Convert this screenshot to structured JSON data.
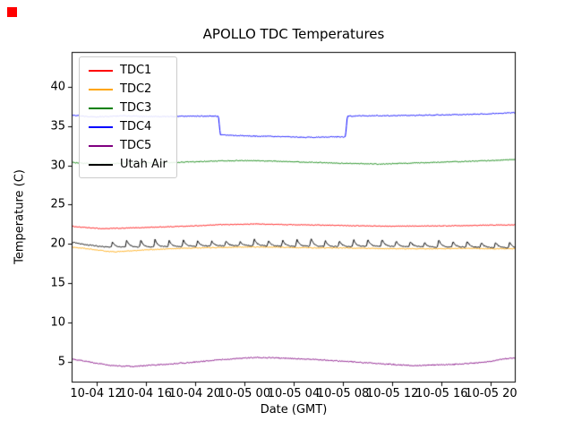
{
  "marker": {
    "color": "#ff0000"
  },
  "chart_data": {
    "type": "line",
    "title": "APOLLO TDC Temperatures",
    "xlabel": "Date (GMT)",
    "ylabel": "Temperature (C)",
    "grid": false,
    "legend_position": "upper left",
    "xlim": [
      0,
      36
    ],
    "ylim": [
      2.4,
      44.4
    ],
    "x_unit": "hours from axis start",
    "xticks": {
      "positions": [
        2,
        6,
        10,
        14,
        18,
        22,
        26,
        30,
        34
      ],
      "labels": [
        "10-04 12",
        "10-04 16",
        "10-04 20",
        "10-05 00",
        "10-05 04",
        "10-05 08",
        "10-05 12",
        "10-05 16",
        "10-05 20"
      ]
    },
    "yticks": {
      "positions": [
        5,
        10,
        15,
        20,
        25,
        30,
        35,
        40
      ],
      "labels": [
        "5",
        "10",
        "15",
        "20",
        "25",
        "30",
        "35",
        "40"
      ]
    },
    "series": [
      {
        "name": "TDC1",
        "color": "#ff0000",
        "noise": 0.05,
        "x": [
          0,
          1,
          2.5,
          4,
          6,
          8,
          10,
          12,
          14,
          15,
          16,
          18,
          20,
          22,
          24,
          26,
          28,
          30,
          32,
          34,
          36
        ],
        "y": [
          22.25,
          22.1,
          21.95,
          22.0,
          22.1,
          22.2,
          22.3,
          22.45,
          22.5,
          22.55,
          22.5,
          22.45,
          22.4,
          22.35,
          22.3,
          22.25,
          22.3,
          22.3,
          22.35,
          22.4,
          22.45
        ]
      },
      {
        "name": "TDC2",
        "color": "#ffa500",
        "noise": 0.05,
        "x": [
          0,
          1,
          2,
          3,
          3.6,
          4.5,
          6,
          8,
          10,
          12,
          14,
          16,
          18,
          20,
          22,
          24,
          26,
          28,
          30,
          32,
          34,
          36
        ],
        "y": [
          19.6,
          19.45,
          19.25,
          19.05,
          19.0,
          19.1,
          19.25,
          19.4,
          19.5,
          19.55,
          19.6,
          19.6,
          19.55,
          19.5,
          19.5,
          19.45,
          19.4,
          19.4,
          19.4,
          19.45,
          19.4,
          19.4
        ]
      },
      {
        "name": "TDC3",
        "color": "#008000",
        "noise": 0.06,
        "x": [
          0,
          1,
          2,
          4,
          6,
          8,
          10,
          12,
          14,
          16,
          18,
          20,
          22,
          24,
          25,
          26,
          28,
          30,
          32,
          34,
          36
        ],
        "y": [
          30.35,
          30.25,
          30.2,
          30.25,
          30.3,
          30.35,
          30.45,
          30.55,
          30.6,
          30.55,
          30.45,
          30.35,
          30.25,
          30.2,
          30.15,
          30.2,
          30.3,
          30.4,
          30.5,
          30.6,
          30.75
        ]
      },
      {
        "name": "TDC4",
        "color": "#0000ff",
        "noise": 0.06,
        "x": [
          0,
          1,
          2,
          3,
          4,
          6,
          8,
          10,
          11.5,
          11.9,
          12.05,
          13,
          15,
          17,
          19,
          21,
          22.2,
          22.35,
          23,
          24,
          26,
          28,
          30,
          32,
          34,
          36
        ],
        "y": [
          36.4,
          36.2,
          36.15,
          36.2,
          36.3,
          36.2,
          36.2,
          36.25,
          36.25,
          36.25,
          33.9,
          33.8,
          33.7,
          33.65,
          33.55,
          33.6,
          33.6,
          36.25,
          36.25,
          36.3,
          36.3,
          36.35,
          36.4,
          36.45,
          36.55,
          36.7
        ]
      },
      {
        "name": "TDC5",
        "color": "#800080",
        "noise": 0.07,
        "x": [
          0,
          1,
          2,
          3,
          4,
          5,
          6,
          8,
          10,
          12,
          14,
          15,
          16,
          18,
          20,
          22,
          24,
          26,
          27,
          28,
          29,
          30,
          31,
          32,
          33,
          34,
          35,
          36
        ],
        "y": [
          5.4,
          5.15,
          4.85,
          4.6,
          4.5,
          4.45,
          4.55,
          4.75,
          5.0,
          5.3,
          5.5,
          5.6,
          5.55,
          5.45,
          5.3,
          5.1,
          4.9,
          4.7,
          4.6,
          4.55,
          4.6,
          4.65,
          4.7,
          4.8,
          4.9,
          5.1,
          5.4,
          5.55
        ]
      },
      {
        "name": "Utah Air",
        "color": "#000000",
        "noise": 0.06,
        "x": [
          0,
          0.5,
          1,
          2,
          3,
          4,
          6,
          8,
          10,
          12,
          14,
          16,
          18,
          20,
          22,
          24,
          26,
          28,
          30,
          32,
          34,
          36
        ],
        "y": [
          20.25,
          20.1,
          19.95,
          19.75,
          19.6,
          19.6,
          19.6,
          19.65,
          19.7,
          19.75,
          19.8,
          19.75,
          19.7,
          19.7,
          19.65,
          19.7,
          19.7,
          19.65,
          19.6,
          19.6,
          19.55,
          19.5
        ],
        "spikes": {
          "start": 3.2,
          "end": 36,
          "period": 1.15,
          "amplitude": 0.95
        }
      }
    ]
  }
}
